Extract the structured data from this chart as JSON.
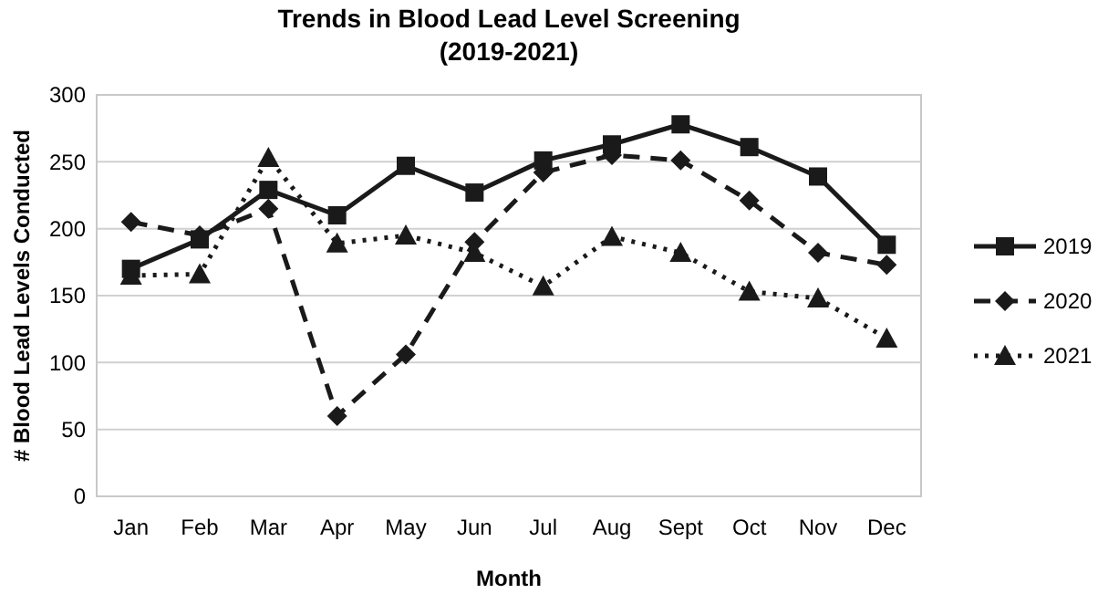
{
  "chart_data": {
    "type": "line",
    "title": "Trends in Blood Lead Level Screening\n(2019-2021)",
    "xlabel": "Month",
    "ylabel": "# Blood Lead Levels Conducted",
    "categories": [
      "Jan",
      "Feb",
      "Mar",
      "Apr",
      "May",
      "Jun",
      "Jul",
      "Aug",
      "Sept",
      "Oct",
      "Nov",
      "Dec"
    ],
    "ylim": [
      0,
      300
    ],
    "yticks": [
      0,
      50,
      100,
      150,
      200,
      250,
      300
    ],
    "grid": "y",
    "legend": "right",
    "series": [
      {
        "name": "2019",
        "color": "#1a1a1a",
        "marker": "square",
        "line_style": "solid",
        "values": [
          170,
          192,
          229,
          210,
          247,
          227,
          251,
          263,
          278,
          261,
          239,
          188
        ]
      },
      {
        "name": "2020",
        "color": "#1a1a1a",
        "marker": "diamond",
        "line_style": "dashed",
        "values": [
          205,
          195,
          215,
          60,
          106,
          190,
          242,
          255,
          251,
          221,
          182,
          173
        ]
      },
      {
        "name": "2021",
        "color": "#1a1a1a",
        "marker": "triangle",
        "line_style": "dotted",
        "values": [
          165,
          166,
          253,
          189,
          195,
          182,
          157,
          194,
          182,
          153,
          148,
          118
        ]
      }
    ]
  }
}
